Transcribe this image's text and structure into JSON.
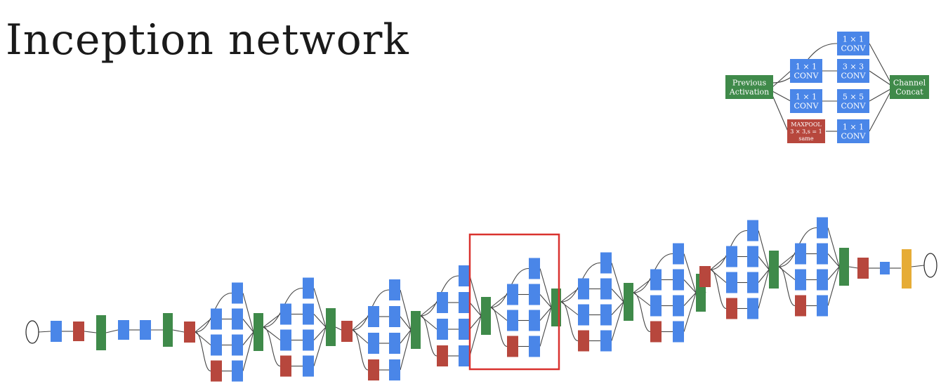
{
  "slide": {
    "title": "Inception network"
  },
  "module": {
    "previous": [
      "Previous",
      "Activation"
    ],
    "conv1_top": [
      "1 × 1",
      "CONV"
    ],
    "conv1_a": [
      "1 × 1",
      "CONV"
    ],
    "conv1_b": [
      "1 × 1",
      "CONV"
    ],
    "maxpool": [
      "MAXPOOL",
      "3 × 3,s = 1",
      "same"
    ],
    "conv3": [
      "3 × 3",
      "CONV"
    ],
    "conv5": [
      "5 × 5",
      "CONV"
    ],
    "conv1_pool": [
      "1 × 1",
      "CONV"
    ],
    "concat": [
      "Channel",
      "Concat"
    ]
  },
  "colors": {
    "conv": "#4a86e8",
    "pool": "#b7473d",
    "concat": "#3f8a4a",
    "softmax": "#e6ac36",
    "highlight": "#d9322f",
    "edge": "#444444"
  }
}
